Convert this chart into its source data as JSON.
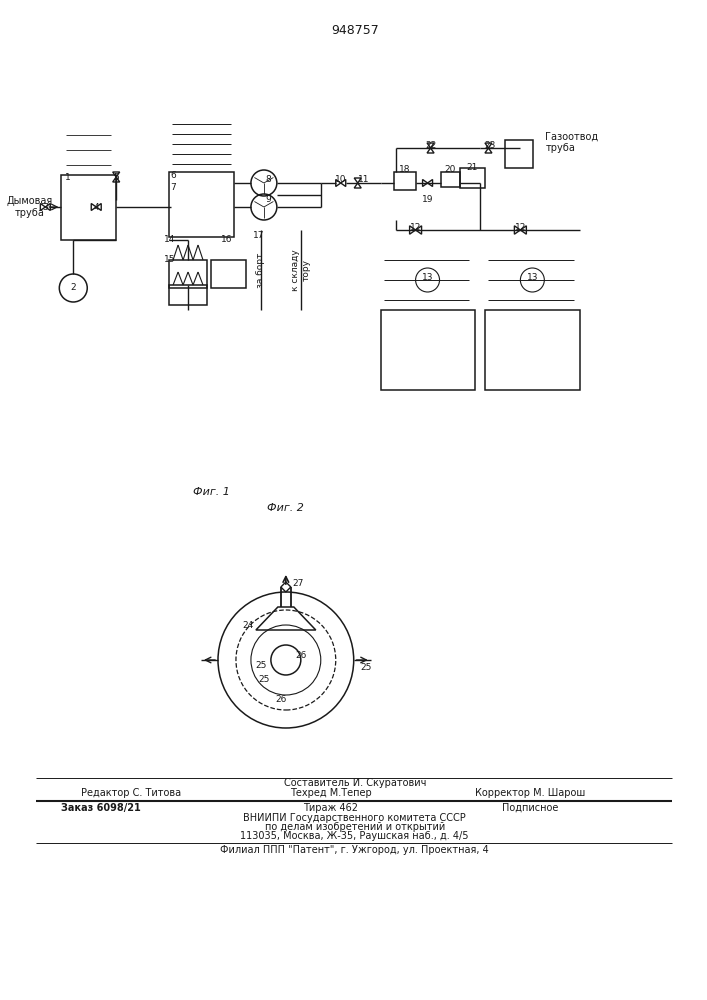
{
  "patent_number": "948757",
  "fig1_caption": "Фиг. 1",
  "fig2_caption": "Фиг. 2",
  "footer_line1": "Составитель И. Скуратович",
  "footer_line2_left": "Редактор С. Титова",
  "footer_line2_mid": "Техред М.Тепер",
  "footer_line2_right": "Корректор М. Шарош",
  "footer_line3_left": "Заказ 6098/21",
  "footer_line3_mid": "Тираж 462",
  "footer_line3_right": "Подписное",
  "footer_line4": "ВНИИПИ Государственного комитета СССР",
  "footer_line5": "по делам изобретений и открытий",
  "footer_line6": "113035, Москва, Ж-35, Раушская наб., д. 4/5",
  "footer_line7": "Филиал ППП \"Патент\", г. Ужгород, ул. Проектная, 4",
  "bg_color": "#ffffff",
  "line_color": "#1a1a1a",
  "label_dymovaya": "Дымовая\nтруба",
  "label_gazootvod": "Газоотвод\nтруба",
  "label_za_bort": "за борт",
  "label_k_sklad": "к складу\nтору"
}
